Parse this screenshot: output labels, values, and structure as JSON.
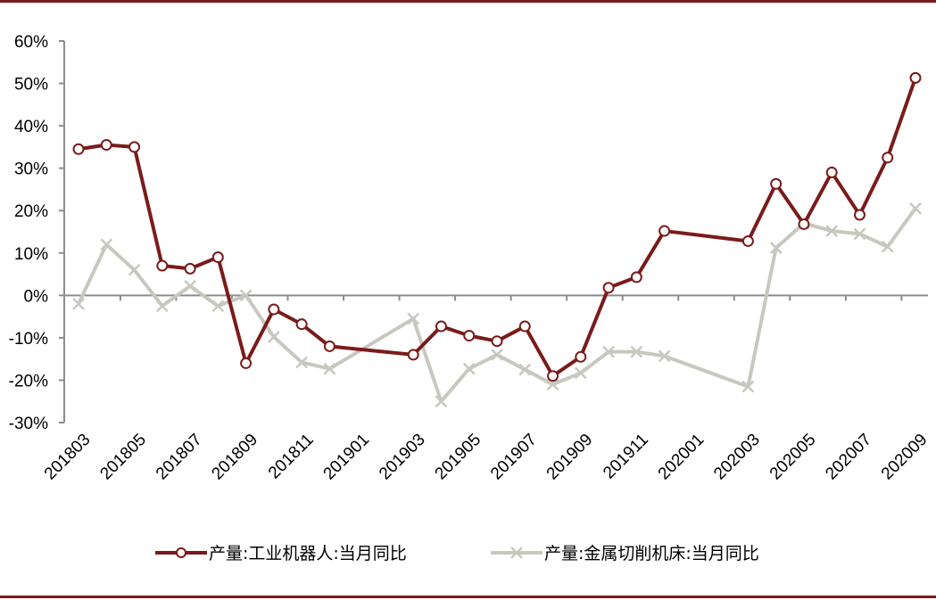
{
  "colors": {
    "frame_rule": "#7a1b1b",
    "axis": "#8c8c8c"
  },
  "chart_data": {
    "type": "line",
    "title": "",
    "xlabel": "",
    "ylabel": "",
    "ylim": [
      -0.3,
      0.6
    ],
    "yticks": [
      "60%",
      "50%",
      "40%",
      "30%",
      "20%",
      "10%",
      "0%",
      "-10%",
      "-20%",
      "-30%"
    ],
    "grid": false,
    "legend_position": "bottom",
    "x": [
      "201803",
      "201804",
      "201805",
      "201806",
      "201807",
      "201808",
      "201809",
      "201810",
      "201811",
      "201812",
      "201901",
      "201902",
      "201903",
      "201904",
      "201905",
      "201906",
      "201907",
      "201908",
      "201909",
      "201910",
      "201911",
      "201912",
      "202001",
      "202002",
      "202003",
      "202004",
      "202005",
      "202006",
      "202007",
      "202008",
      "202009"
    ],
    "xtick_labels": [
      "201803",
      "201805",
      "201807",
      "201809",
      "201811",
      "201901",
      "201903",
      "201905",
      "201907",
      "201909",
      "201911",
      "202001",
      "202003",
      "202005",
      "202007",
      "202009"
    ],
    "series": [
      {
        "name": "产量:工业机器人:当月同比",
        "color": "#7a1b1b",
        "marker": "circle",
        "values": [
          0.345,
          0.355,
          0.35,
          0.07,
          0.063,
          0.09,
          -0.16,
          -0.033,
          -0.068,
          -0.12,
          null,
          null,
          -0.14,
          -0.073,
          -0.095,
          -0.108,
          -0.073,
          -0.19,
          -0.145,
          0.018,
          0.043,
          0.152,
          null,
          null,
          0.128,
          0.263,
          0.168,
          0.29,
          0.19,
          0.325,
          0.513
        ]
      },
      {
        "name": "产量:金属切削机床:当月同比",
        "color": "#c8c8c0",
        "marker": "x",
        "values": [
          -0.02,
          0.12,
          0.06,
          -0.025,
          0.022,
          -0.025,
          0.0,
          -0.098,
          -0.158,
          -0.173,
          null,
          null,
          -0.055,
          -0.25,
          -0.173,
          -0.14,
          -0.175,
          -0.21,
          -0.183,
          -0.133,
          -0.133,
          -0.143,
          null,
          null,
          -0.215,
          0.112,
          0.17,
          0.152,
          0.145,
          0.115,
          0.205
        ]
      }
    ]
  }
}
